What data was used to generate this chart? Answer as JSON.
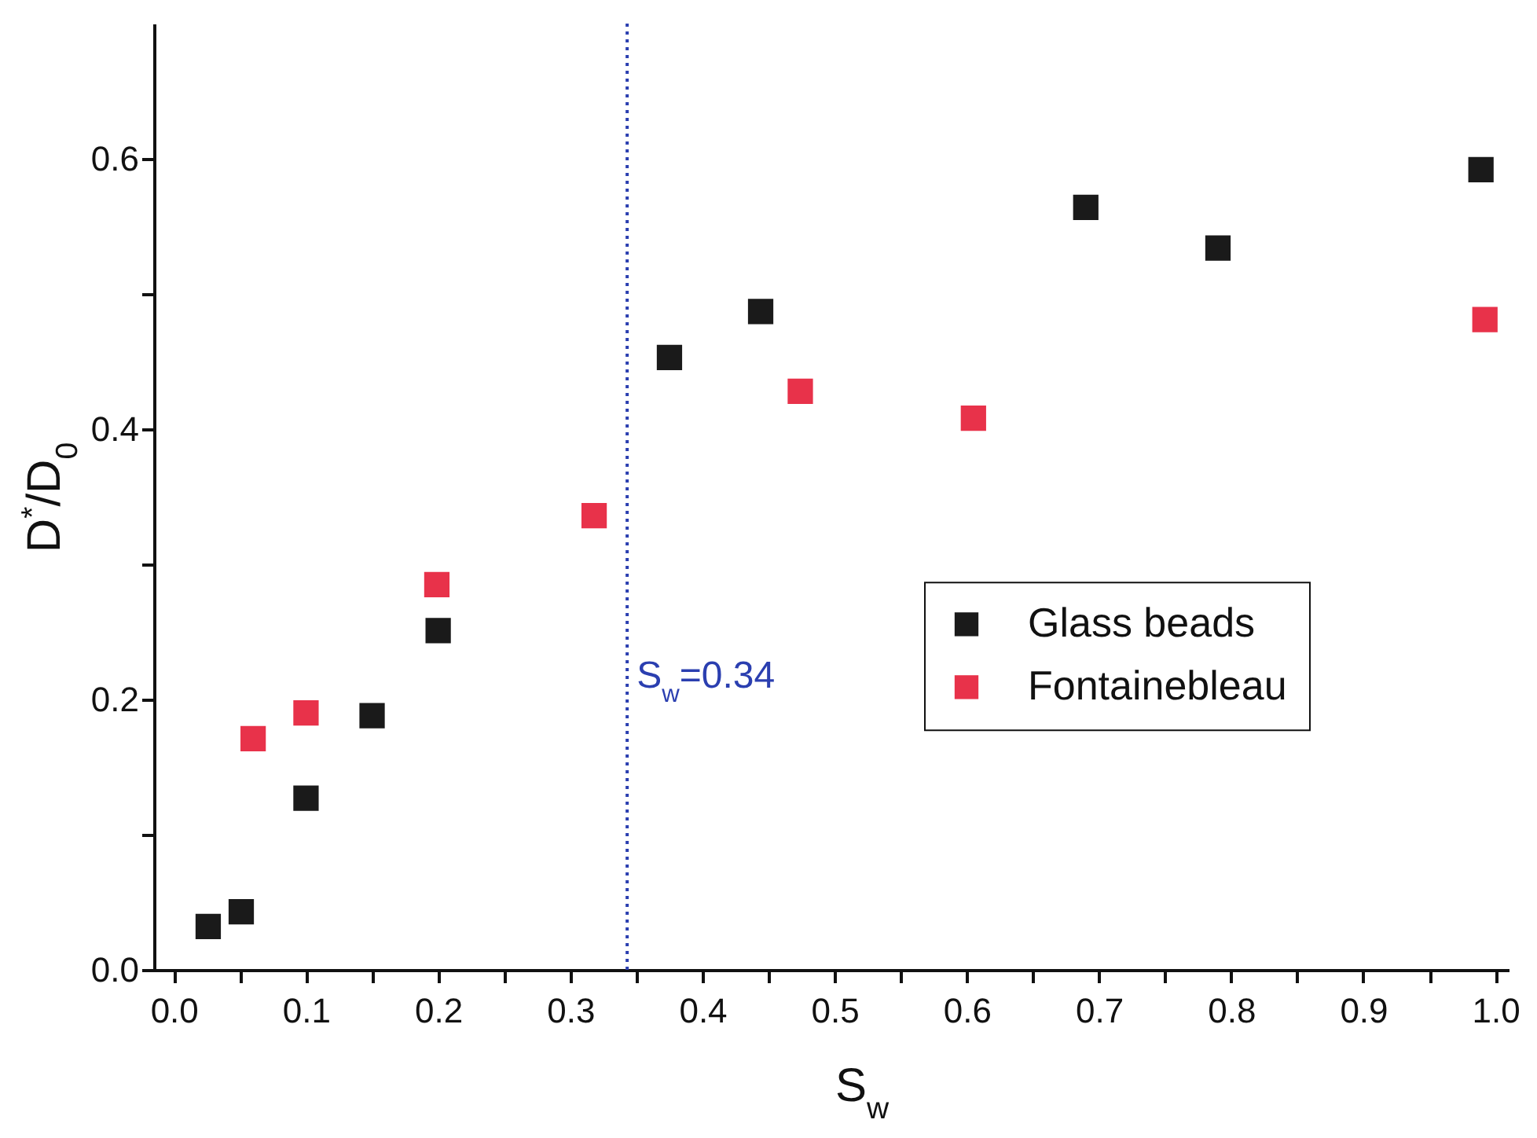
{
  "chart_data": {
    "type": "scatter",
    "xlabel": "S$_{w}$",
    "ylabel": "D$^{*}$/D$_{0}$",
    "xlim": [
      -0.015,
      1.01
    ],
    "ylim": [
      0,
      0.7
    ],
    "xticks": [
      {
        "value": 0,
        "label": "0.0"
      },
      {
        "value": 0.05,
        "label": null
      },
      0.1,
      {
        "value": 0.15,
        "label": null
      },
      0.2,
      {
        "value": 0.25,
        "label": null
      },
      0.3,
      {
        "value": 0.35,
        "label": null
      },
      0.4,
      {
        "value": 0.45,
        "label": null
      },
      0.5,
      {
        "value": 0.55,
        "label": null
      },
      0.6,
      {
        "value": 0.65,
        "label": null
      },
      0.7,
      {
        "value": 0.75,
        "label": null
      },
      0.8,
      {
        "value": 0.85,
        "label": null
      },
      0.9,
      {
        "value": 0.95,
        "label": null
      },
      {
        "value": 1,
        "label": "1.0"
      }
    ],
    "yticks": [
      {
        "value": 0,
        "label": "0.0"
      },
      {
        "value": 0.1,
        "label": null
      },
      0.2,
      {
        "value": 0.3,
        "label": null
      },
      0.4,
      {
        "value": 0.5,
        "label": null
      },
      0.6
    ],
    "series": [
      {
        "name": "Glass beads",
        "color": "#1a1a1a",
        "x": [
          0.026,
          0.051,
          0.1,
          0.15,
          0.2,
          0.375,
          0.444,
          0.69,
          0.79,
          0.989
        ],
        "values": [
          0.032,
          0.043,
          0.127,
          0.188,
          0.251,
          0.453,
          0.487,
          0.564,
          0.534,
          0.592
        ]
      },
      {
        "name": "Fontainebleau",
        "color": "#e8324a",
        "x": [
          0.06,
          0.1,
          0.199,
          0.318,
          0.474,
          0.605,
          0.992
        ],
        "values": [
          0.171,
          0.19,
          0.285,
          0.336,
          0.428,
          0.408,
          0.481
        ]
      }
    ],
    "ref_lines": [
      {
        "axis": "x",
        "value": 0.343,
        "label": "S$_{w}$=0.34",
        "color": "#2b3fb0",
        "line_style": "dotted"
      }
    ],
    "marker": "square",
    "legend": "right",
    "grid": false
  }
}
